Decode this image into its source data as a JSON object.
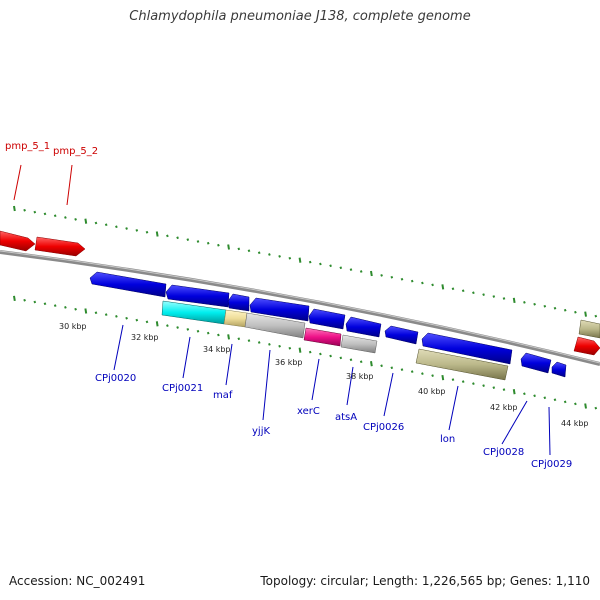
{
  "header": {
    "title": "Chlamydophila pneumoniae J138, complete genome"
  },
  "footer": {
    "accession": "Accession: NC_002491",
    "summary": "Topology: circular; Length: 1,226,565 bp; Genes: 1,110"
  },
  "scale_labels": [
    "30 kbp",
    "32 kbp",
    "34 kbp",
    "36 kbp",
    "38 kbp",
    "40 kbp",
    "42 kbp",
    "44 kbp"
  ],
  "feature_labels": [
    {
      "text": "pmp_5_1",
      "color": "#cc0000"
    },
    {
      "text": "pmp_5_2",
      "color": "#cc0000"
    },
    {
      "text": "CPj0020",
      "color": "#0000bb"
    },
    {
      "text": "CPj0021",
      "color": "#0000bb"
    },
    {
      "text": "maf",
      "color": "#0000bb"
    },
    {
      "text": "yjjK",
      "color": "#0000bb"
    },
    {
      "text": "xerC",
      "color": "#0000bb"
    },
    {
      "text": "atsA",
      "color": "#0000bb"
    },
    {
      "text": "CPj0026",
      "color": "#0000bb"
    },
    {
      "text": "lon",
      "color": "#0000bb"
    },
    {
      "text": "CPj0028",
      "color": "#0000bb"
    },
    {
      "text": "CPj0029",
      "color": "#0000bb"
    }
  ],
  "colors": {
    "cds_forward": "#0000dd",
    "pmp": "#ee0000",
    "rna_cyan": "#00eeee",
    "rna_yellow": "#eedd99",
    "gray_gene": "#c0c0c0",
    "magenta_gene": "#ee1188",
    "khaki_gene": "#bbb88a",
    "tick": "#2e8b2e",
    "backbone": "#808080"
  }
}
